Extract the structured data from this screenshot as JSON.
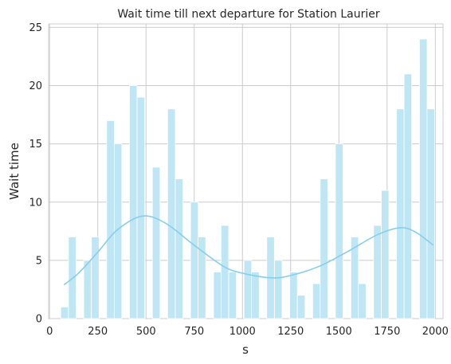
{
  "chart_data": {
    "type": "bar",
    "title": "Wait time till next departure for Station Laurier",
    "xlabel": "s",
    "ylabel": "Wait time",
    "xlim": [
      -5,
      2040
    ],
    "ylim": [
      0,
      25.3
    ],
    "xticks": [
      0,
      250,
      500,
      750,
      1000,
      1250,
      1500,
      1750,
      2000
    ],
    "yticks": [
      0,
      5,
      10,
      15,
      20,
      25
    ],
    "grid": true,
    "bin_width": 39.5,
    "bar_color": "#bfe6f4",
    "kde_color": "#87ceeb",
    "bins": [
      {
        "x0": 58,
        "value": 1
      },
      {
        "x0": 98,
        "value": 7
      },
      {
        "x0": 138,
        "value": 0
      },
      {
        "x0": 177,
        "value": 5
      },
      {
        "x0": 217,
        "value": 7
      },
      {
        "x0": 256,
        "value": 0
      },
      {
        "x0": 296,
        "value": 17
      },
      {
        "x0": 335,
        "value": 15
      },
      {
        "x0": 375,
        "value": 0
      },
      {
        "x0": 414,
        "value": 20
      },
      {
        "x0": 454,
        "value": 19
      },
      {
        "x0": 494,
        "value": 0
      },
      {
        "x0": 533,
        "value": 13
      },
      {
        "x0": 573,
        "value": 0
      },
      {
        "x0": 612,
        "value": 18
      },
      {
        "x0": 652,
        "value": 12
      },
      {
        "x0": 691,
        "value": 0
      },
      {
        "x0": 731,
        "value": 10
      },
      {
        "x0": 770,
        "value": 7
      },
      {
        "x0": 810,
        "value": 0
      },
      {
        "x0": 850,
        "value": 4
      },
      {
        "x0": 889,
        "value": 8
      },
      {
        "x0": 929,
        "value": 4
      },
      {
        "x0": 968,
        "value": 0
      },
      {
        "x0": 1008,
        "value": 5
      },
      {
        "x0": 1047,
        "value": 4
      },
      {
        "x0": 1087,
        "value": 0
      },
      {
        "x0": 1126,
        "value": 7
      },
      {
        "x0": 1166,
        "value": 5
      },
      {
        "x0": 1206,
        "value": 0
      },
      {
        "x0": 1245,
        "value": 4
      },
      {
        "x0": 1285,
        "value": 2
      },
      {
        "x0": 1324,
        "value": 0
      },
      {
        "x0": 1364,
        "value": 3
      },
      {
        "x0": 1403,
        "value": 12
      },
      {
        "x0": 1443,
        "value": 0
      },
      {
        "x0": 1482,
        "value": 15
      },
      {
        "x0": 1522,
        "value": 0
      },
      {
        "x0": 1562,
        "value": 7
      },
      {
        "x0": 1601,
        "value": 3
      },
      {
        "x0": 1641,
        "value": 0
      },
      {
        "x0": 1680,
        "value": 8
      },
      {
        "x0": 1720,
        "value": 11
      },
      {
        "x0": 1759,
        "value": 0
      },
      {
        "x0": 1799,
        "value": 18
      },
      {
        "x0": 1838,
        "value": 21
      },
      {
        "x0": 1878,
        "value": 0
      },
      {
        "x0": 1918,
        "value": 24
      },
      {
        "x0": 1957,
        "value": 18
      }
    ],
    "kde": {
      "x": [
        75,
        150,
        250,
        350,
        480,
        600,
        750,
        900,
        1000,
        1150,
        1250,
        1400,
        1550,
        1700,
        1820,
        1900,
        1990
      ],
      "y": [
        2.9,
        3.9,
        5.7,
        7.6,
        8.8,
        8.2,
        6.3,
        4.5,
        3.9,
        3.5,
        3.7,
        4.5,
        5.8,
        7.2,
        7.8,
        7.4,
        6.3
      ]
    }
  }
}
